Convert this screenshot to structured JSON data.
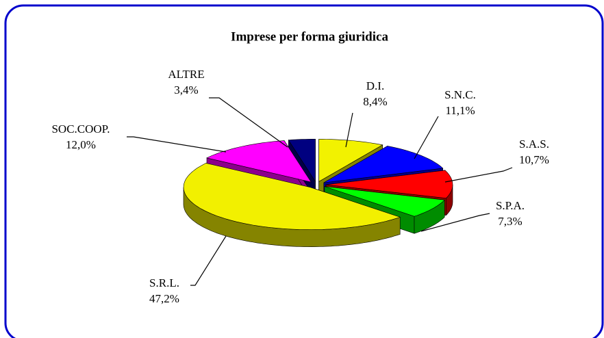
{
  "chart_data": {
    "type": "pie",
    "title": "Imprese per forma giuridica",
    "categories": [
      "D.I.",
      "S.N.C.",
      "S.A.S.",
      "S.P.A.",
      "S.R.L.",
      "SOC.COOP.",
      "ALTRE"
    ],
    "values": [
      8.4,
      11.1,
      10.7,
      7.3,
      47.2,
      12.0,
      3.4
    ],
    "value_labels": [
      "8,4%",
      "11,1%",
      "10,7%",
      "7,3%",
      "47,2%",
      "12,0%",
      "3,4%"
    ],
    "colors": [
      "#f2f200",
      "#0000ff",
      "#ff0000",
      "#00ff00",
      "#f2f000",
      "#ff00ff",
      "#000080"
    ]
  }
}
